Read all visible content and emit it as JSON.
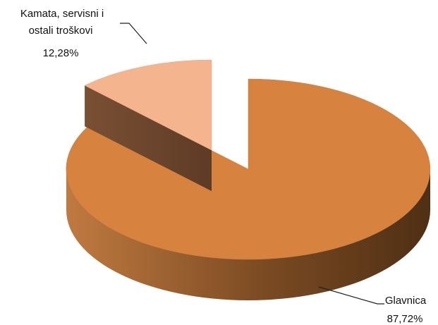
{
  "chart_data": {
    "type": "pie",
    "title": "",
    "slices": [
      {
        "label_lines": [
          "Kamata, servisni i",
          "ostali troškovi"
        ],
        "value": 12.28,
        "value_label": "12,28%",
        "exploded": true
      },
      {
        "label_lines": [
          "Glavnica"
        ],
        "value": 87.72,
        "value_label": "87,72%",
        "exploded": false
      }
    ],
    "legend": "none",
    "colors": {
      "slice_top": [
        "#f4b48e",
        "#d7823f"
      ],
      "slice_side_dark": [
        "#5e3b25",
        "#4f2f14"
      ],
      "slice_side_light": [
        "#8b5a34",
        "#c07a40"
      ]
    }
  }
}
